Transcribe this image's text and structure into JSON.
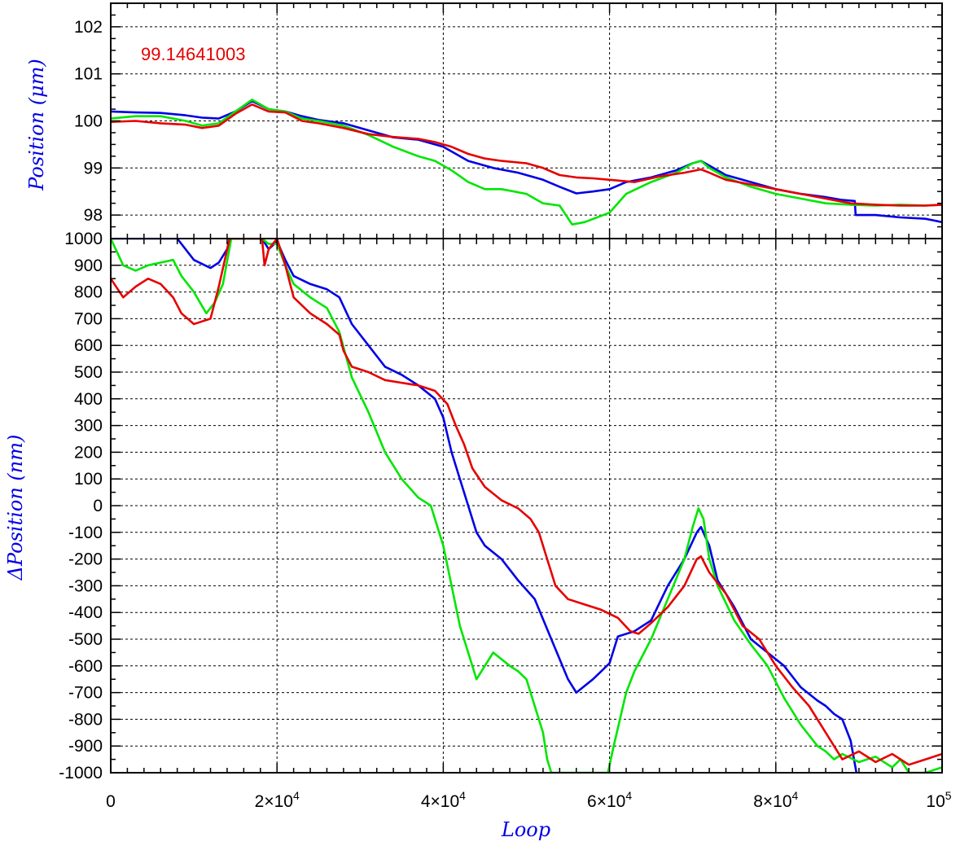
{
  "colors": {
    "blue": "#0000e6",
    "green": "#00e600",
    "red": "#e60000",
    "label_blue": "#0000e6",
    "annotation_red": "#e60000",
    "grid": "#000000"
  },
  "chart_data": [
    {
      "type": "line",
      "panel": "top",
      "ylabel": "Position (μm)",
      "xlabel": "",
      "xlim": [
        0,
        100000
      ],
      "ylim": [
        97.5,
        102.5
      ],
      "yticks": [
        98,
        99,
        100,
        101,
        102
      ],
      "ytick_labels": [
        "98",
        "99",
        "100",
        "101",
        "102"
      ],
      "grid": true,
      "annotation": "99.14641003",
      "series": [
        {
          "color": "blue",
          "x": [
            0,
            3000,
            6000,
            9000,
            11000,
            13000,
            15000,
            17000,
            19000,
            21000,
            23000,
            25000,
            28000,
            31000,
            34000,
            37000,
            40000,
            43000,
            46000,
            49000,
            52000,
            54000,
            56000,
            58000,
            60000,
            62000,
            65000,
            68000,
            70000,
            71000,
            72000,
            74000,
            77000,
            80000,
            83000,
            86000,
            88000,
            89500,
            89600,
            92000,
            95000,
            98000,
            100000
          ],
          "y": [
            100.2,
            100.18,
            100.17,
            100.12,
            100.07,
            100.05,
            100.2,
            100.42,
            100.25,
            100.2,
            100.1,
            100.02,
            99.95,
            99.8,
            99.65,
            99.6,
            99.45,
            99.15,
            99.0,
            98.9,
            98.75,
            98.6,
            98.46,
            98.5,
            98.55,
            98.7,
            98.8,
            98.95,
            99.1,
            99.15,
            99.05,
            98.85,
            98.7,
            98.55,
            98.45,
            98.38,
            98.32,
            98.3,
            98.0,
            98.0,
            97.95,
            97.92,
            97.85
          ]
        },
        {
          "color": "green",
          "x": [
            0,
            3000,
            6000,
            9000,
            11000,
            13000,
            15000,
            17000,
            19000,
            21000,
            23000,
            25000,
            28000,
            31000,
            34000,
            37000,
            39000,
            41000,
            43000,
            45000,
            47000,
            50000,
            52000,
            54000,
            55500,
            57000,
            60000,
            62000,
            65000,
            68000,
            70000,
            71000,
            72000,
            74000,
            77000,
            80000,
            83000,
            86000,
            89000,
            92000,
            95000,
            98000,
            100000
          ],
          "y": [
            100.05,
            100.1,
            100.1,
            100.0,
            99.9,
            99.95,
            100.2,
            100.45,
            100.25,
            100.2,
            100.05,
            100.0,
            99.9,
            99.7,
            99.45,
            99.25,
            99.15,
            98.95,
            98.7,
            98.55,
            98.55,
            98.45,
            98.25,
            98.2,
            97.8,
            97.85,
            98.05,
            98.45,
            98.7,
            98.9,
            99.1,
            99.15,
            99.0,
            98.8,
            98.6,
            98.45,
            98.35,
            98.25,
            98.22,
            98.2,
            98.22,
            98.2,
            98.22
          ]
        },
        {
          "color": "red",
          "x": [
            0,
            3000,
            6000,
            9000,
            11000,
            13000,
            15000,
            17000,
            19000,
            21000,
            23000,
            25000,
            28000,
            31000,
            34000,
            37000,
            39000,
            41000,
            43000,
            45000,
            47000,
            50000,
            52000,
            54000,
            56000,
            58000,
            60000,
            63000,
            66000,
            69000,
            71000,
            72000,
            74000,
            77000,
            80000,
            83000,
            86000,
            89000,
            92000,
            95000,
            98000,
            100000
          ],
          "y": [
            99.98,
            100.0,
            99.95,
            99.92,
            99.85,
            99.9,
            100.15,
            100.35,
            100.2,
            100.18,
            100.0,
            99.95,
            99.85,
            99.72,
            99.66,
            99.62,
            99.55,
            99.45,
            99.3,
            99.2,
            99.15,
            99.1,
            99.0,
            98.85,
            98.8,
            98.78,
            98.75,
            98.7,
            98.82,
            98.9,
            98.97,
            98.9,
            98.75,
            98.65,
            98.55,
            98.45,
            98.35,
            98.25,
            98.22,
            98.2,
            98.2,
            98.22
          ]
        }
      ]
    },
    {
      "type": "line",
      "panel": "bottom",
      "ylabel": "ΔPosition (nm)",
      "xlabel": "Loop",
      "xlim": [
        0,
        100000
      ],
      "ylim": [
        -1000,
        1000
      ],
      "yticks": [
        -1000,
        -900,
        -800,
        -700,
        -600,
        -500,
        -400,
        -300,
        -200,
        -100,
        0,
        100,
        200,
        300,
        400,
        500,
        600,
        700,
        800,
        900,
        1000
      ],
      "ytick_labels": [
        "-1000",
        "-900",
        "-800",
        "-700",
        "-600",
        "-500",
        "-400",
        "-300",
        "-200",
        "-100",
        "0",
        "100",
        "200",
        "300",
        "400",
        "500",
        "600",
        "700",
        "800",
        "900",
        "1000"
      ],
      "xticks": [
        0,
        20000,
        40000,
        60000,
        80000,
        100000
      ],
      "xtick_labels": [
        {
          "base": "0",
          "exp": ""
        },
        {
          "base": "2×10",
          "exp": "4"
        },
        {
          "base": "4×10",
          "exp": "4"
        },
        {
          "base": "6×10",
          "exp": "4"
        },
        {
          "base": "8×10",
          "exp": "4"
        },
        {
          "base": "10",
          "exp": "5"
        }
      ],
      "grid": true,
      "series": [
        {
          "color": "blue",
          "x": [
            0,
            1500,
            3000,
            4500,
            6000,
            8000,
            10000,
            12000,
            13000,
            14000,
            14300,
            18200,
            19000,
            20000,
            21000,
            22000,
            24000,
            26000,
            27500,
            29000,
            31000,
            33000,
            35000,
            37000,
            39000,
            40000,
            41000,
            42000,
            43000,
            44000,
            45000,
            47000,
            49000,
            51000,
            53000,
            55000,
            56000,
            58000,
            59000,
            60000,
            61000,
            63000,
            65000,
            67000,
            69000,
            70500,
            71000,
            72000,
            73000,
            75000,
            77000,
            79000,
            81000,
            83000,
            85000,
            86000,
            87000,
            88000,
            89000,
            89700
          ],
          "y": [
            1000,
            1000,
            1000,
            1000,
            1000,
            1000,
            920,
            890,
            910,
            960,
            1000,
            1000,
            960,
            990,
            920,
            860,
            830,
            810,
            780,
            680,
            600,
            520,
            490,
            450,
            400,
            330,
            200,
            100,
            0,
            -100,
            -150,
            -200,
            -280,
            -350,
            -500,
            -650,
            -700,
            -650,
            -620,
            -590,
            -490,
            -470,
            -430,
            -300,
            -200,
            -100,
            -80,
            -150,
            -280,
            -380,
            -500,
            -550,
            -600,
            -680,
            -730,
            -750,
            -780,
            -800,
            -880,
            -1000
          ]
        },
        {
          "color": "green",
          "x": [
            0,
            1500,
            3000,
            4500,
            6000,
            7500,
            8500,
            10000,
            11500,
            12500,
            13500,
            14500,
            18200,
            19000,
            20000,
            21000,
            22000,
            24000,
            26000,
            27500,
            29000,
            31000,
            33000,
            35000,
            37000,
            38500,
            40000,
            41000,
            42000,
            43000,
            44000,
            46000,
            48000,
            49000,
            50000,
            51000,
            51500,
            52000,
            52500,
            53000,
            59800,
            60500,
            62000,
            63000,
            65000,
            67000,
            69000,
            70000,
            70700,
            71300,
            72000,
            73000,
            75000,
            77000,
            79000,
            81000,
            83000,
            85000,
            86000,
            87000,
            88000,
            90000,
            92000,
            94000,
            95000,
            96000,
            98000,
            100000
          ],
          "y": [
            1000,
            900,
            880,
            900,
            910,
            920,
            860,
            800,
            720,
            760,
            830,
            1000,
            1000,
            980,
            980,
            900,
            830,
            780,
            740,
            650,
            480,
            350,
            200,
            100,
            30,
            0,
            -150,
            -300,
            -450,
            -550,
            -650,
            -550,
            -600,
            -620,
            -650,
            -750,
            -800,
            -850,
            -950,
            -1000,
            -1000,
            -900,
            -700,
            -620,
            -500,
            -350,
            -200,
            -80,
            -10,
            -50,
            -200,
            -300,
            -430,
            -520,
            -600,
            -720,
            -820,
            -900,
            -920,
            -950,
            -930,
            -960,
            -940,
            -980,
            -950,
            -1000,
            -1000,
            -980
          ]
        },
        {
          "color": "red",
          "x": [
            0,
            1500,
            3000,
            4500,
            6000,
            7500,
            8500,
            10000,
            11000,
            12000,
            13000,
            14300,
            18200,
            18500,
            19000,
            20000,
            21000,
            22000,
            24000,
            26000,
            27500,
            28000,
            29000,
            31000,
            33000,
            35000,
            37000,
            39000,
            40500,
            41500,
            42500,
            43500,
            45000,
            47000,
            49000,
            50500,
            51500,
            52500,
            53500,
            55000,
            57000,
            59000,
            61000,
            62500,
            63500,
            65000,
            67000,
            69000,
            70500,
            71000,
            72000,
            74000,
            76000,
            78000,
            80000,
            82000,
            84000,
            86000,
            88000,
            90000,
            92000,
            94000,
            96000,
            98000,
            100000
          ],
          "y": [
            850,
            780,
            820,
            850,
            830,
            780,
            720,
            680,
            690,
            700,
            820,
            1000,
            1000,
            900,
            960,
            1000,
            900,
            780,
            720,
            680,
            640,
            580,
            520,
            500,
            470,
            460,
            450,
            430,
            380,
            300,
            230,
            140,
            70,
            20,
            -10,
            -50,
            -100,
            -200,
            -300,
            -350,
            -370,
            -390,
            -420,
            -470,
            -480,
            -440,
            -380,
            -300,
            -200,
            -190,
            -250,
            -330,
            -450,
            -500,
            -600,
            -680,
            -750,
            -850,
            -950,
            -920,
            -960,
            -930,
            -970,
            -950,
            -930
          ]
        }
      ]
    }
  ]
}
